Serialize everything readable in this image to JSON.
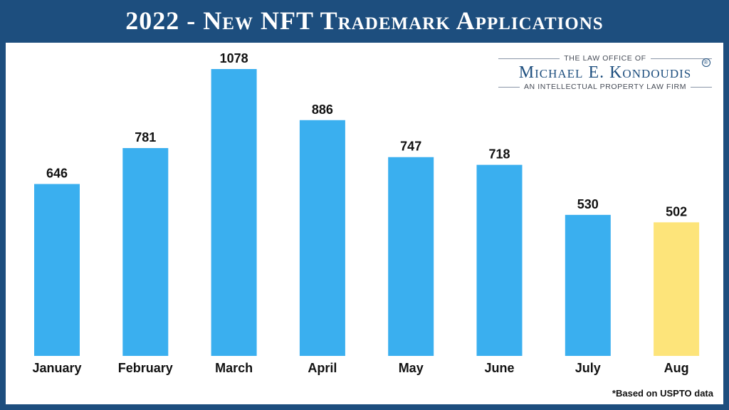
{
  "title": "2022 - New NFT Trademark Applications",
  "logo": {
    "line1": "THE LAW OFFICE OF",
    "name": "Michael E. Kondoudis",
    "reg": "®",
    "line2": "AN INTELLECTUAL PROPERTY LAW FIRM"
  },
  "footnote": "*Based on USPTO data",
  "colors": {
    "bar": "#3aafef",
    "highlight": "#fde47a",
    "border": "#1d4e7e"
  },
  "chart_data": {
    "type": "bar",
    "title": "2022 - New NFT Trademark Applications",
    "categories": [
      "January",
      "February",
      "March",
      "April",
      "May",
      "June",
      "July",
      "Aug"
    ],
    "values": [
      646,
      781,
      1078,
      886,
      747,
      718,
      530,
      502
    ],
    "highlight_index": 7,
    "xlabel": "",
    "ylabel": "",
    "ylim": [
      0,
      1078
    ],
    "grid": false,
    "legend": "none"
  }
}
